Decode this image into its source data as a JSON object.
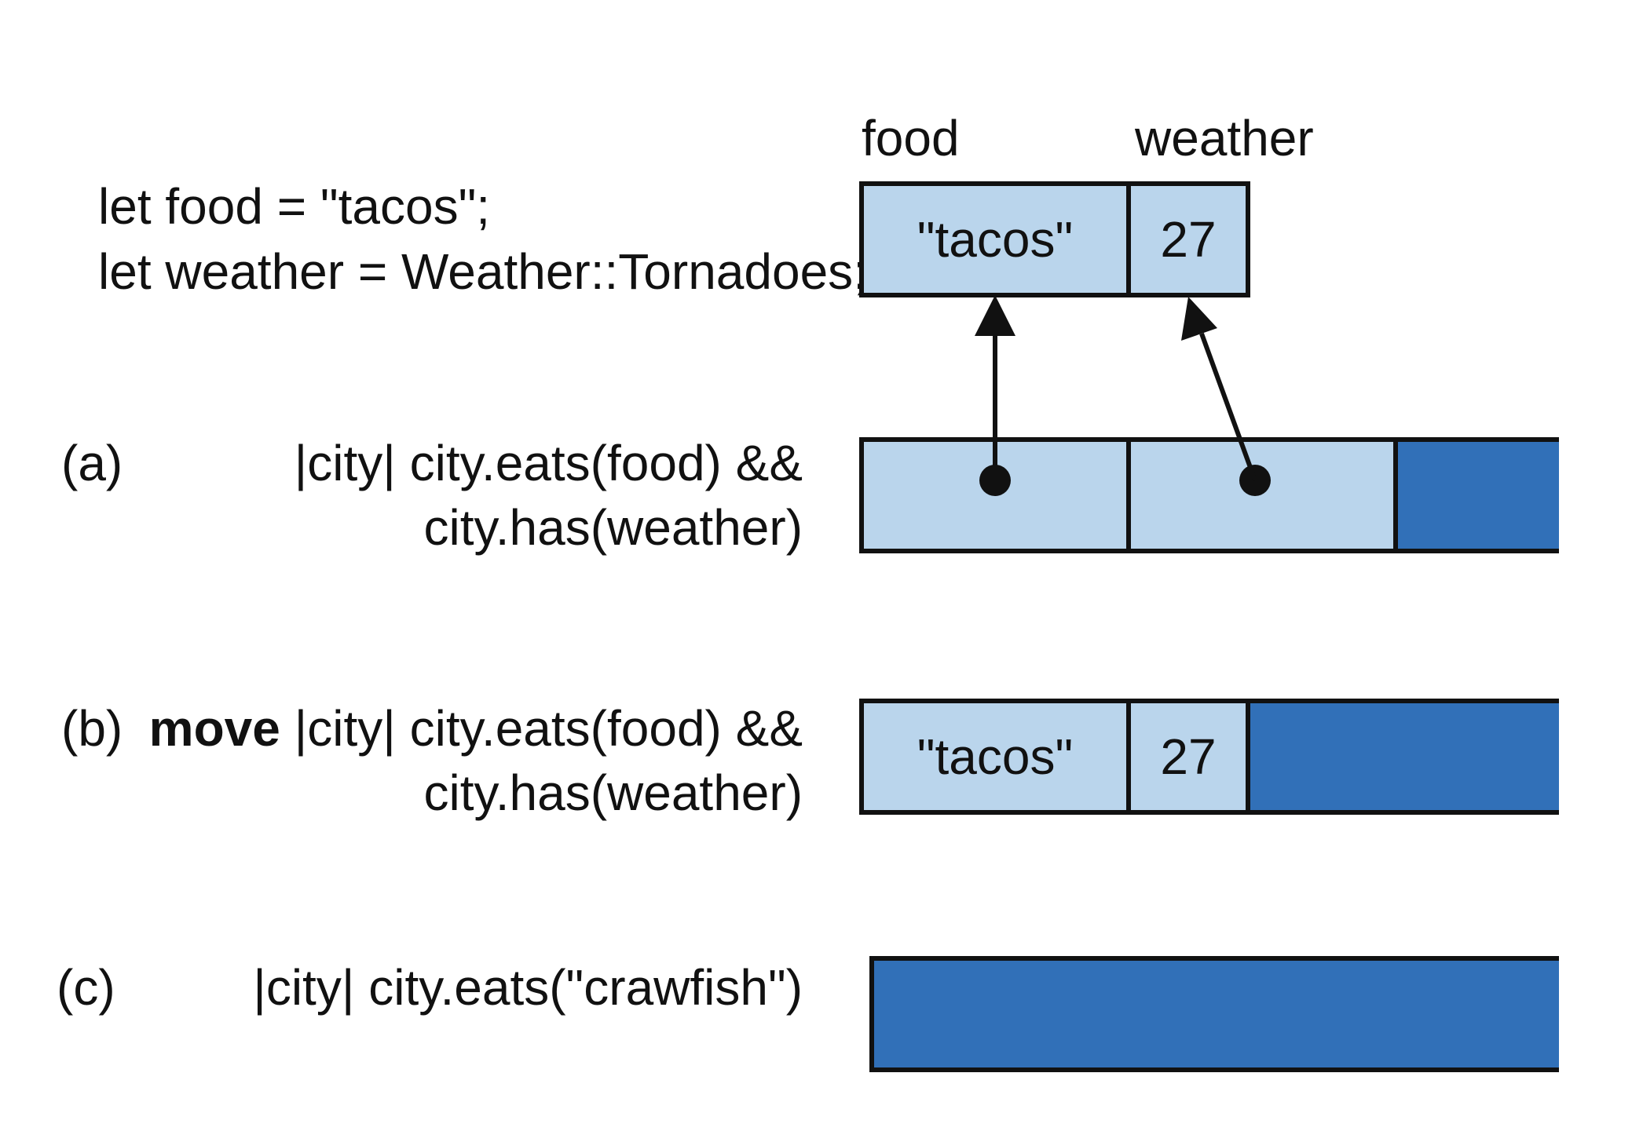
{
  "code": {
    "line1": "let food = \"tacos\";",
    "line2": "let weather = Weather::Tornadoes;"
  },
  "variables": {
    "food": {
      "label": "food",
      "value": "\"tacos\""
    },
    "weather": {
      "label": "weather",
      "value": "27"
    }
  },
  "closures": {
    "a": {
      "label": "(a)",
      "line1": "|city| city.eats(food) &&",
      "line2": "city.has(weather)"
    },
    "b": {
      "label": "(b)",
      "keyword": "move",
      "line1": " |city| city.eats(food) &&",
      "line2": "city.has(weather)",
      "food_value": "\"tacos\"",
      "weather_value": "27"
    },
    "c": {
      "label": "(c)",
      "line1": "|city| city.eats(\"crawfish\")"
    }
  },
  "colors": {
    "light_cell": "#bad5ec",
    "dark_cell": "#3170b8",
    "stroke": "#111111"
  }
}
